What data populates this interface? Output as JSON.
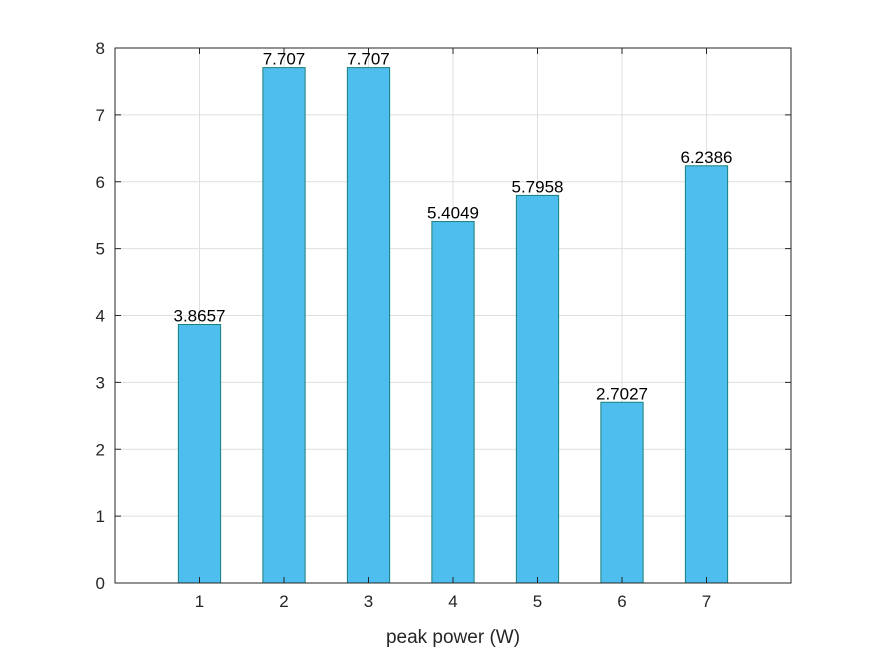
{
  "chart_data": {
    "type": "bar",
    "categories": [
      "1",
      "2",
      "3",
      "4",
      "5",
      "6",
      "7"
    ],
    "values": [
      3.8657,
      7.707,
      7.707,
      5.4049,
      5.7958,
      2.7027,
      6.2386
    ],
    "data_labels": [
      "3.8657",
      "7.707",
      "7.707",
      "5.4049",
      "5.7958",
      "2.7027",
      "6.2386"
    ],
    "title": "",
    "xlabel": "peak power (W)",
    "ylabel": "",
    "xlim": [
      0,
      8
    ],
    "ylim": [
      0,
      8
    ],
    "y_ticks": [
      0,
      1,
      2,
      3,
      4,
      5,
      6,
      7,
      8
    ],
    "x_ticks": [
      1,
      2,
      3,
      4,
      5,
      6,
      7
    ],
    "grid": true,
    "box": true,
    "colors": {
      "bar_fill": "#4DBEEE",
      "bar_edge": "#1A7F7A",
      "grid": "#DFDFDF",
      "axis": "#262626"
    }
  }
}
